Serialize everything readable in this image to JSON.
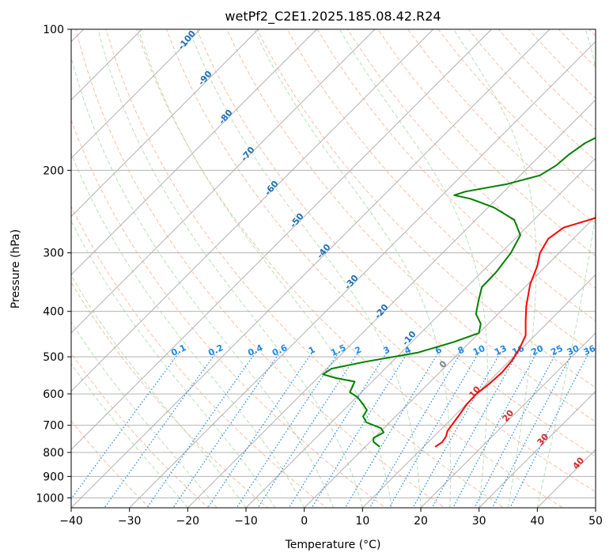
{
  "chart_data": {
    "type": "skew-t",
    "title": "wetPf2_C2E1.2025.185.08.42.R24",
    "xlabel": "Temperature (°C)",
    "ylabel": "Pressure (hPa)",
    "xlim": [
      -40,
      50
    ],
    "ylim": [
      1050,
      100
    ],
    "y_scale": "log",
    "x_ticks": [
      "−40",
      "−30",
      "−20",
      "−10",
      "0",
      "10",
      "20",
      "30",
      "40",
      "50"
    ],
    "x_tick_values": [
      -40,
      -30,
      -20,
      -10,
      0,
      10,
      20,
      30,
      40,
      50
    ],
    "y_ticks": [
      "100",
      "200",
      "300",
      "400",
      "500",
      "600",
      "700",
      "800",
      "900",
      "1000"
    ],
    "y_tick_values": [
      100,
      200,
      300,
      400,
      500,
      600,
      700,
      800,
      900,
      1000
    ],
    "grid": true,
    "colors": {
      "temperature": "#ff0000",
      "dewpoint": "#008000",
      "isotherm": "#a9a9a9",
      "dry_adiabat": "#f4a582",
      "moist_adiabat": "#a6d8a6",
      "mixing_ratio": "#1e88e5",
      "dry_adiabat_label": "#d62728",
      "theta_e_label": "#1f6fb4",
      "gray_label": "#808080"
    },
    "series": [
      {
        "key": "temperature",
        "points": [
          {
            "x": 12.0,
            "p": 778
          },
          {
            "x": 12.4,
            "p": 760
          },
          {
            "x": 12.1,
            "p": 740
          },
          {
            "x": 11.4,
            "p": 720
          },
          {
            "x": 11.0,
            "p": 690
          },
          {
            "x": 10.6,
            "p": 660
          },
          {
            "x": 10.1,
            "p": 630
          },
          {
            "x": 10.0,
            "p": 600
          },
          {
            "x": 10.5,
            "p": 570
          },
          {
            "x": 10.7,
            "p": 540
          },
          {
            "x": 10.4,
            "p": 510
          },
          {
            "x": 9.6,
            "p": 480
          },
          {
            "x": 8.4,
            "p": 450
          },
          {
            "x": 6.0,
            "p": 420
          },
          {
            "x": 3.5,
            "p": 390
          },
          {
            "x": 0.4,
            "p": 350
          },
          {
            "x": -1.5,
            "p": 320
          },
          {
            "x": -3.3,
            "p": 300
          },
          {
            "x": -4.3,
            "p": 280
          },
          {
            "x": -3.6,
            "p": 265
          },
          {
            "x": -0.5,
            "p": 255
          },
          {
            "x": 6.0,
            "p": 235
          },
          {
            "x": 8.9,
            "p": 215
          },
          {
            "x": 10.0,
            "p": 200
          },
          {
            "x": 10.2,
            "p": 185
          },
          {
            "x": 10.7,
            "p": 170
          },
          {
            "x": 12.0,
            "p": 157
          },
          {
            "x": 14.8,
            "p": 145
          },
          {
            "x": 18.6,
            "p": 135
          },
          {
            "x": 19.8,
            "p": 125
          },
          {
            "x": 18.3,
            "p": 117
          },
          {
            "x": 17.6,
            "p": 112
          },
          {
            "x": 18.6,
            "p": 107
          },
          {
            "x": 21.8,
            "p": 100
          }
        ]
      },
      {
        "key": "dewpoint",
        "points": [
          {
            "x": 2.5,
            "p": 778
          },
          {
            "x": 0.6,
            "p": 760
          },
          {
            "x": -0.1,
            "p": 745
          },
          {
            "x": 0.7,
            "p": 725
          },
          {
            "x": -0.5,
            "p": 710
          },
          {
            "x": -4.0,
            "p": 690
          },
          {
            "x": -5.6,
            "p": 670
          },
          {
            "x": -6.0,
            "p": 650
          },
          {
            "x": -7.8,
            "p": 630
          },
          {
            "x": -9.8,
            "p": 610
          },
          {
            "x": -12.0,
            "p": 595
          },
          {
            "x": -12.5,
            "p": 580
          },
          {
            "x": -13.0,
            "p": 565
          },
          {
            "x": -16.8,
            "p": 555
          },
          {
            "x": -19.7,
            "p": 545
          },
          {
            "x": -19.2,
            "p": 530
          },
          {
            "x": -14.5,
            "p": 512
          },
          {
            "x": -7.2,
            "p": 490
          },
          {
            "x": -2.8,
            "p": 465
          },
          {
            "x": 0.0,
            "p": 445
          },
          {
            "x": -1.3,
            "p": 425
          },
          {
            "x": -3.8,
            "p": 405
          },
          {
            "x": -5.6,
            "p": 380
          },
          {
            "x": -7.4,
            "p": 355
          },
          {
            "x": -7.5,
            "p": 330
          },
          {
            "x": -8.3,
            "p": 300
          },
          {
            "x": -9.7,
            "p": 275
          },
          {
            "x": -13.4,
            "p": 255
          },
          {
            "x": -19.0,
            "p": 240
          },
          {
            "x": -24.5,
            "p": 230
          },
          {
            "x": -27.9,
            "p": 226
          },
          {
            "x": -26.6,
            "p": 222
          },
          {
            "x": -20.8,
            "p": 214
          },
          {
            "x": -16.6,
            "p": 205
          },
          {
            "x": -15.5,
            "p": 195
          },
          {
            "x": -15.2,
            "p": 185
          },
          {
            "x": -14.4,
            "p": 175
          },
          {
            "x": -11.7,
            "p": 162
          },
          {
            "x": -8.7,
            "p": 150
          },
          {
            "x": -8.9,
            "p": 142
          },
          {
            "x": -10.9,
            "p": 135
          },
          {
            "x": -13.5,
            "p": 128
          },
          {
            "x": -14.3,
            "p": 125
          },
          {
            "x": -11.2,
            "p": 121
          },
          {
            "x": -7.5,
            "p": 116
          },
          {
            "x": -4.3,
            "p": 110
          },
          {
            "x": -2.0,
            "p": 104
          },
          {
            "x": -0.8,
            "p": 100
          }
        ]
      }
    ],
    "theta_e_labels": [
      "-100",
      "-90",
      "-80",
      "-70",
      "-60",
      "-50",
      "-40",
      "-30",
      "-20",
      "-10"
    ],
    "theta_e_label_values": [
      -100,
      -90,
      -80,
      -70,
      -60,
      -50,
      -40,
      -30,
      -20,
      -10
    ],
    "mixing_ratio_labels": [
      "0.1",
      "0.2",
      "0.4",
      "0.6",
      "1",
      "1.5",
      "2",
      "3",
      "4",
      "6",
      "8",
      "10",
      "13",
      "16",
      "20",
      "25",
      "30",
      "36"
    ],
    "mixing_ratio_values": [
      0.1,
      0.2,
      0.4,
      0.6,
      1,
      1.5,
      2,
      3,
      4,
      6,
      8,
      10,
      13,
      16,
      20,
      25,
      30,
      36
    ],
    "dry_adiabat_labels": [
      "0",
      "10",
      "20",
      "30",
      "40"
    ],
    "dry_adiabat_label_values": [
      0,
      10,
      20,
      30,
      40
    ]
  }
}
